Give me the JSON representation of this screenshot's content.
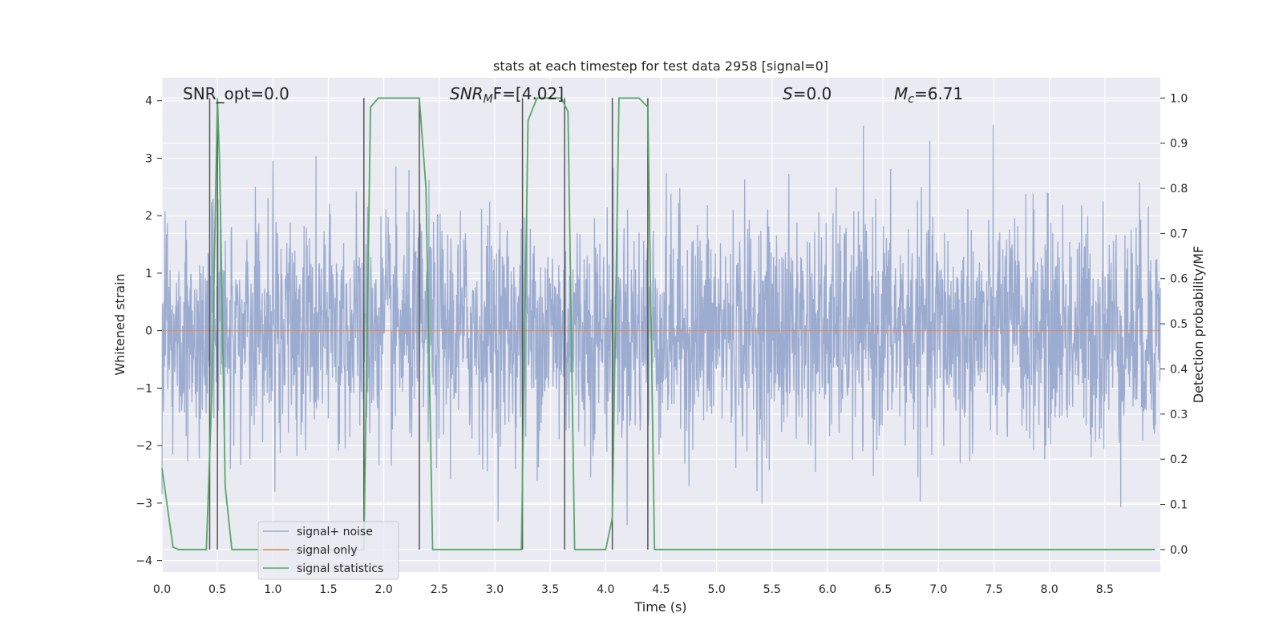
{
  "chart_data": {
    "type": "line",
    "title": "stats at each timestep for test data 2958 [signal=0]",
    "xlabel": "Time (s)",
    "ylabel": "Whitened strain",
    "ylabel_right": "Detection probability/MF",
    "xlim": [
      0.0,
      9.0
    ],
    "ylim": [
      -4.2,
      4.4
    ],
    "ylim_right": [
      -0.05,
      1.045
    ],
    "xticks": [
      "0.0",
      "0.5",
      "1.0",
      "1.5",
      "2.0",
      "2.5",
      "3.0",
      "3.5",
      "4.0",
      "4.5",
      "5.0",
      "5.5",
      "6.0",
      "6.5",
      "7.0",
      "7.5",
      "8.0",
      "8.5"
    ],
    "yticks": [
      "4",
      "3",
      "2",
      "1",
      "0",
      "−1",
      "−2",
      "−3",
      "−4"
    ],
    "yticks_right": [
      "1.0",
      "0.9",
      "0.8",
      "0.7",
      "0.6",
      "0.5",
      "0.4",
      "0.3",
      "0.2",
      "0.1",
      "0.0"
    ],
    "grid": true,
    "legend_position": "lower-left",
    "annotations": {
      "snr_opt": "SNR_opt=0.0",
      "snr_mf_base": "SNR",
      "snr_mf_sub": "M",
      "snr_mf_rest": "F=[4.02]",
      "s_base": "S",
      "s_rest": "=0.0",
      "mc_base": "M",
      "mc_sub": "c",
      "mc_rest": "=6.71"
    },
    "series": [
      {
        "name": "signal+ noise",
        "color": "#98a9cd",
        "description": "whitened strain noise, approx. gaussian, std 1, spanning -3.5 to 3.7",
        "x_range": [
          0.0,
          9.0
        ],
        "std": 1.0
      },
      {
        "name": "signal only",
        "color": "#dd8452",
        "x": [
          0.0,
          9.0
        ],
        "y": [
          0.0,
          0.0
        ]
      },
      {
        "name": "signal statistics",
        "color": "#55a868",
        "axis": "right",
        "x": [
          0.0,
          0.1,
          0.15,
          0.4,
          0.45,
          0.5,
          0.52,
          0.57,
          0.63,
          1.82,
          1.88,
          1.95,
          2.32,
          2.38,
          2.44,
          3.24,
          3.3,
          3.38,
          3.6,
          3.66,
          3.72,
          4.0,
          4.06,
          4.12,
          4.3,
          4.38,
          4.44,
          8.95
        ],
        "y": [
          0.18,
          0.005,
          0.0,
          0.0,
          0.35,
          1.0,
          0.85,
          0.14,
          0.0,
          0.0,
          0.98,
          1.0,
          1.0,
          0.8,
          0.0,
          0.0,
          0.95,
          1.0,
          1.0,
          0.97,
          0.0,
          0.0,
          0.07,
          1.0,
          1.0,
          0.98,
          0.0,
          0.0
        ]
      }
    ],
    "vertical_markers": {
      "color": "#555555",
      "x": [
        0.43,
        0.5,
        1.82,
        2.32,
        3.25,
        3.63,
        4.06,
        4.38
      ]
    }
  }
}
